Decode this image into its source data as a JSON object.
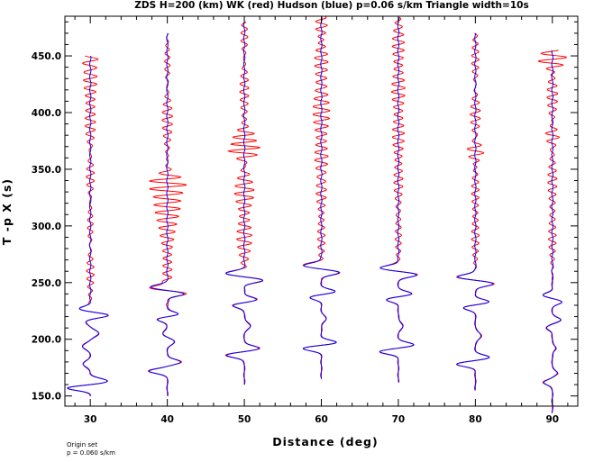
{
  "chart_data": {
    "type": "line",
    "title": "ZDS H=200 (km) WK (red) Hudson (blue) p=0.06 s/km Triangle width=10s",
    "xlabel": "Distance (deg)",
    "ylabel": "T -p X (s)",
    "xlim": [
      26.7,
      93.3
    ],
    "ylim": [
      141.0,
      485.0
    ],
    "x_ticks": [
      30,
      40,
      50,
      60,
      70,
      80,
      90
    ],
    "x_tick_labels": [
      "30",
      "40",
      "50",
      "60",
      "70",
      "80",
      "90"
    ],
    "y_ticks": [
      150,
      200,
      250,
      300,
      350,
      400,
      450
    ],
    "y_tick_labels": [
      "150.0",
      "200.0",
      "250.0",
      "300.0",
      "350.0",
      "400.0",
      "450.0"
    ],
    "grid": false,
    "colors": {
      "wk": "#ff0000",
      "hudson": "#0000ff",
      "axis": "#000000"
    },
    "series": [
      {
        "name": "WK",
        "color": "#ff0000"
      },
      {
        "name": "Hudson",
        "color": "#0000ff"
      }
    ],
    "traces": [
      {
        "distance": 30,
        "t_start": 150,
        "t_end": 450,
        "scale": 2.0,
        "pulses": [
          [
            157,
            3.0,
            -1.5
          ],
          [
            163,
            3.5,
            1.1
          ],
          [
            178,
            4,
            -0.45
          ],
          [
            194,
            4,
            -0.5
          ],
          [
            205,
            4,
            0.55
          ],
          [
            216,
            4,
            -0.3
          ],
          [
            221,
            3,
            1.2
          ],
          [
            227,
            3,
            -0.7
          ]
        ],
        "red_noise": [
          [
            262,
            12,
            0.28
          ],
          [
            300,
            14,
            0.22
          ],
          [
            345,
            12,
            0.32
          ],
          [
            390,
            15,
            0.35
          ],
          [
            430,
            12,
            0.45
          ],
          [
            446,
            4,
            0.5
          ]
        ]
      },
      {
        "distance": 40,
        "t_start": 150,
        "t_end": 470,
        "scale": 2.0,
        "pulses": [
          [
            172,
            3,
            -1.2
          ],
          [
            180,
            3,
            0.9
          ],
          [
            198,
            4,
            0.45
          ],
          [
            205,
            4,
            -0.3
          ],
          [
            218,
            3,
            -0.75
          ],
          [
            222,
            3,
            0.8
          ],
          [
            240,
            3,
            1.1
          ],
          [
            246,
            3,
            -1.1
          ]
        ],
        "red_noise": [
          [
            260,
            12,
            0.3
          ],
          [
            300,
            14,
            0.5
          ],
          [
            320,
            8,
            0.6
          ],
          [
            338,
            5,
            -1.0
          ],
          [
            395,
            14,
            0.35
          ],
          [
            440,
            12,
            0.2
          ]
        ]
      },
      {
        "distance": 50,
        "t_start": 160,
        "t_end": 480,
        "scale": 2.0,
        "pulses": [
          [
            186,
            3,
            -1.2
          ],
          [
            192,
            3,
            1.0
          ],
          [
            212,
            4,
            0.4
          ],
          [
            230,
            3,
            -0.8
          ],
          [
            235,
            3,
            0.85
          ],
          [
            252,
            3,
            1.2
          ],
          [
            258,
            3,
            -1.2
          ]
        ],
        "red_noise": [
          [
            290,
            12,
            0.5
          ],
          [
            330,
            10,
            0.65
          ],
          [
            368,
            5,
            1.3
          ],
          [
            376,
            5,
            -1.0
          ],
          [
            420,
            14,
            0.3
          ],
          [
            465,
            10,
            0.25
          ]
        ]
      },
      {
        "distance": 60,
        "t_start": 165,
        "t_end": 485,
        "scale": 2.0,
        "pulses": [
          [
            192,
            3,
            -1.2
          ],
          [
            197,
            3,
            1.0
          ],
          [
            218,
            4,
            0.3
          ],
          [
            237,
            3,
            -0.75
          ],
          [
            242,
            3,
            0.9
          ],
          [
            259,
            3,
            1.2
          ],
          [
            265,
            3,
            -1.2
          ]
        ],
        "red_noise": [
          [
            290,
            12,
            0.25
          ],
          [
            330,
            10,
            0.35
          ],
          [
            360,
            10,
            0.45
          ],
          [
            400,
            14,
            0.55
          ],
          [
            450,
            12,
            0.45
          ],
          [
            475,
            8,
            0.5
          ]
        ]
      },
      {
        "distance": 70,
        "t_start": 162,
        "t_end": 484,
        "scale": 2.0,
        "pulses": [
          [
            189,
            3,
            -1.2
          ],
          [
            195,
            3,
            1.0
          ],
          [
            212,
            4,
            0.3
          ],
          [
            235,
            3,
            -0.8
          ],
          [
            240,
            3,
            0.9
          ],
          [
            257,
            3,
            1.2
          ],
          [
            263,
            3,
            -1.2
          ]
        ],
        "red_noise": [
          [
            290,
            12,
            0.2
          ],
          [
            340,
            12,
            0.3
          ],
          [
            380,
            12,
            0.4
          ],
          [
            420,
            12,
            0.45
          ],
          [
            460,
            12,
            0.4
          ]
        ]
      },
      {
        "distance": 80,
        "t_start": 155,
        "t_end": 470,
        "scale": 2.0,
        "pulses": [
          [
            178,
            3,
            -1.2
          ],
          [
            184,
            3,
            0.9
          ],
          [
            203,
            4,
            0.4
          ],
          [
            228,
            3,
            -0.8
          ],
          [
            233,
            3,
            0.9
          ],
          [
            249,
            3,
            1.2
          ],
          [
            255,
            3,
            -1.2
          ]
        ],
        "red_noise": [
          [
            290,
            12,
            0.25
          ],
          [
            330,
            12,
            0.25
          ],
          [
            366,
            5,
            -0.6
          ],
          [
            400,
            12,
            0.35
          ],
          [
            445,
            14,
            0.25
          ]
        ]
      },
      {
        "distance": 90,
        "t_start": 135,
        "t_end": 455,
        "scale": 2.0,
        "pulses": [
          [
            162,
            3,
            -0.6
          ],
          [
            170,
            3,
            0.35
          ],
          [
            192,
            3,
            0.25
          ],
          [
            210,
            3,
            -0.4
          ],
          [
            217,
            3,
            0.55
          ],
          [
            233,
            3,
            0.6
          ],
          [
            239,
            3,
            -0.6
          ]
        ],
        "red_noise": [
          [
            290,
            12,
            0.25
          ],
          [
            340,
            12,
            0.3
          ],
          [
            380,
            5,
            -0.5
          ],
          [
            415,
            12,
            0.35
          ],
          [
            447,
            5,
            1.0
          ]
        ]
      }
    ]
  },
  "footer": {
    "line1": "Origin set",
    "line2": "p = 0.060 s/km"
  }
}
